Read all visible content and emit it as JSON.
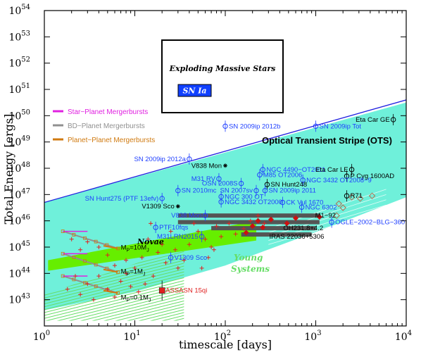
{
  "chart_data": {
    "type": "scatter",
    "xlabel": "timescale [days]",
    "ylabel": "Total Energy [ergs]",
    "xscale": "log",
    "yscale": "log",
    "xlim": [
      1,
      10000
    ],
    "ylim": [
      1e+42,
      1e+54
    ],
    "x_ticks": [
      {
        "v": 1,
        "mant": "10",
        "exp": "0"
      },
      {
        "v": 10,
        "mant": "10",
        "exp": "1"
      },
      {
        "v": 100,
        "mant": "10",
        "exp": "2"
      },
      {
        "v": 1000,
        "mant": "10",
        "exp": "3"
      },
      {
        "v": 10000,
        "mant": "10",
        "exp": "4"
      }
    ],
    "y_ticks": [
      {
        "v": 43,
        "mant": "10",
        "exp": "43"
      },
      {
        "v": 44,
        "mant": "10",
        "exp": "44"
      },
      {
        "v": 45,
        "mant": "10",
        "exp": "45"
      },
      {
        "v": 46,
        "mant": "10",
        "exp": "46"
      },
      {
        "v": 47,
        "mant": "10",
        "exp": "47"
      },
      {
        "v": 48,
        "mant": "10",
        "exp": "48"
      },
      {
        "v": 49,
        "mant": "10",
        "exp": "49"
      },
      {
        "v": 50,
        "mant": "10",
        "exp": "50"
      },
      {
        "v": 51,
        "mant": "10",
        "exp": "51"
      },
      {
        "v": 52,
        "mant": "10",
        "exp": "52"
      },
      {
        "v": 53,
        "mant": "10",
        "exp": "53"
      },
      {
        "v": 54,
        "mant": "10",
        "exp": "54"
      }
    ],
    "region_labels": {
      "exploding": "Exploding Massive Stars",
      "sn1a": "SN Ia",
      "ots": "Optical Transient Stripe (OTS)",
      "novae": "Novae",
      "young": [
        "Young",
        "Systems"
      ]
    },
    "legend": [
      {
        "label": "Star−Planet Mergerbursts",
        "color": "#e020e0"
      },
      {
        "label": "BD−Planet Mergerbursts",
        "color": "#909090"
      },
      {
        "label": "Planet−Planet Mergerbursts",
        "color": "#d07a10"
      }
    ],
    "colors": {
      "ots_fill": "#6ff0da",
      "sn_line": "#2020e0",
      "novae": "#66ee00",
      "young": "#66dd66",
      "known_event": "#2040ff",
      "red_marker": "#e02020",
      "diamond": "#b07050"
    },
    "sources": [
      {
        "name": "SN 2009ip 2012b",
        "x": 100,
        "y": 49.6,
        "color": "#2040ff",
        "m": "oc",
        "lx": 100,
        "ly": 49.6,
        "anchor": "start"
      },
      {
        "name": "SN 2009ip Tot",
        "x": 1000,
        "y": 49.6,
        "color": "#2040ff",
        "m": "oc",
        "lx": 1000,
        "ly": 49.6,
        "anchor": "start"
      },
      {
        "name": "Eta Car GE",
        "x": 7200,
        "y": 49.85,
        "color": "#000000",
        "m": "oc",
        "lx": 7200,
        "ly": 49.85,
        "anchor": "end"
      },
      {
        "name": "SN 2009ip 2012a",
        "x": 40,
        "y": 48.35,
        "color": "#2040ff",
        "m": "oc",
        "lx": 40,
        "ly": 48.35,
        "anchor": "end"
      },
      {
        "name": "V838 Mon",
        "x": 100,
        "y": 48.1,
        "color": "#000000",
        "m": "star",
        "lx": 100,
        "ly": 48.1,
        "anchor": "end"
      },
      {
        "name": "NGC 4490−OT2011",
        "x": 260,
        "y": 47.95,
        "color": "#2040ff",
        "m": "oc",
        "lx": 260,
        "ly": 47.95,
        "anchor": "start"
      },
      {
        "name": "M85 OT2006",
        "x": 240,
        "y": 47.75,
        "color": "#2040ff",
        "m": "oc",
        "lx": 240,
        "ly": 47.75,
        "anchor": "start"
      },
      {
        "name": "Eta Car LE",
        "x": 2500,
        "y": 47.95,
        "color": "#000000",
        "m": "oc",
        "lx": 2500,
        "ly": 47.95,
        "anchor": "end"
      },
      {
        "name": "P Cyg 1600AD",
        "x": 2200,
        "y": 47.7,
        "color": "#000000",
        "m": "oc",
        "lx": 2200,
        "ly": 47.7,
        "anchor": "start"
      },
      {
        "name": "M31 RV",
        "x": 85,
        "y": 47.6,
        "color": "#2040ff",
        "m": "oc",
        "lx": 85,
        "ly": 47.6,
        "anchor": "end"
      },
      {
        "name": "OSN 2008S",
        "x": 150,
        "y": 47.42,
        "color": "#2040ff",
        "m": "oc",
        "lx": 150,
        "ly": 47.42,
        "anchor": "end"
      },
      {
        "name": "NGC 3432 OT2008−9",
        "x": 720,
        "y": 47.55,
        "color": "#2040ff",
        "m": "oc",
        "lx": 720,
        "ly": 47.55,
        "anchor": "start"
      },
      {
        "name": "SN Hunt248",
        "x": 290,
        "y": 47.38,
        "color": "#000000",
        "m": "oc",
        "lx": 290,
        "ly": 47.38,
        "anchor": "start"
      },
      {
        "name": "SN 2010mc",
        "x": 30,
        "y": 47.15,
        "color": "#2040ff",
        "m": "oc",
        "lx": 30,
        "ly": 47.15,
        "anchor": "start"
      },
      {
        "name": "SN 2007sv",
        "x": 220,
        "y": 47.15,
        "color": "#2040ff",
        "m": "oc",
        "lx": 220,
        "ly": 47.15,
        "anchor": "end"
      },
      {
        "name": "SN 2009ip 2011",
        "x": 275,
        "y": 47.15,
        "color": "#2040ff",
        "m": "oc",
        "lx": 275,
        "ly": 47.15,
        "anchor": "start"
      },
      {
        "name": "R71",
        "x": 2200,
        "y": 46.95,
        "color": "#000000",
        "m": "oc",
        "lx": 2200,
        "ly": 46.95,
        "anchor": "start"
      },
      {
        "name": "SN Hunt275 (PTF 13efv)",
        "x": 20,
        "y": 46.85,
        "color": "#2040ff",
        "m": "oc",
        "lx": 20,
        "ly": 46.85,
        "anchor": "end"
      },
      {
        "name": "NGC 300 OT",
        "x": 90,
        "y": 46.92,
        "color": "#2040ff",
        "m": "oc",
        "lx": 90,
        "ly": 46.92,
        "anchor": "start"
      },
      {
        "name": "NGC 3432 OT2000",
        "x": 90,
        "y": 46.72,
        "color": "#2040ff",
        "m": "oc",
        "lx": 90,
        "ly": 46.72,
        "anchor": "start"
      },
      {
        "name": "CK Vul 1670",
        "x": 430,
        "y": 46.7,
        "color": "#2040ff",
        "m": "oc",
        "lx": 430,
        "ly": 46.7,
        "anchor": "start"
      },
      {
        "name": "V1309 Sco",
        "x": 30,
        "y": 46.55,
        "color": "#000000",
        "m": "star",
        "lx": 30,
        "ly": 46.55,
        "anchor": "end"
      },
      {
        "name": "NGC 6302",
        "x": 700,
        "y": 46.52,
        "color": "#2040ff",
        "m": "oc",
        "lx": 700,
        "ly": 46.52,
        "anchor": "start"
      },
      {
        "name": "V838 Mon",
        "x": 60,
        "y": 46.2,
        "color": "#2040ff",
        "m": "oc",
        "lx": 60,
        "ly": 46.2,
        "anchor": "end"
      },
      {
        "name": "M1−92",
        "x": 900,
        "y": 46.2,
        "color": "#000000",
        "m": "none",
        "lx": 900,
        "ly": 46.2,
        "anchor": "start"
      },
      {
        "name": "OGLE−2002−BLG−360",
        "x": 1500,
        "y": 45.95,
        "color": "#2040ff",
        "m": "oc",
        "lx": 1500,
        "ly": 45.95,
        "anchor": "start"
      },
      {
        "name": "PTF10fqs",
        "x": 17,
        "y": 45.75,
        "color": "#2040ff",
        "m": "oc",
        "lx": 17,
        "ly": 45.75,
        "anchor": "start"
      },
      {
        "name": "OH231.8+4.2",
        "x": 400,
        "y": 45.72,
        "color": "#000000",
        "m": "none",
        "lx": 400,
        "ly": 45.72,
        "anchor": "start"
      },
      {
        "name": "M31LRN2015",
        "x": 55,
        "y": 45.4,
        "color": "#2040ff",
        "m": "oc",
        "lx": 55,
        "ly": 45.4,
        "anchor": "end"
      },
      {
        "name": "IRAS 22036+5306",
        "x": 280,
        "y": 45.4,
        "color": "#000000",
        "m": "none",
        "lx": 280,
        "ly": 45.4,
        "anchor": "start"
      },
      {
        "name": "V1309 Sco",
        "x": 25,
        "y": 44.6,
        "color": "#2040ff",
        "m": "oc",
        "lx": 25,
        "ly": 44.6,
        "anchor": "start"
      },
      {
        "name": "ASSASN 15qi",
        "x": 20,
        "y": 43.35,
        "color": "#e02020",
        "m": "sq",
        "lx": 20,
        "ly": 43.35,
        "anchor": "start"
      }
    ],
    "mass_labels": [
      {
        "text": "M",
        "sub": "P",
        "eq": "=10M",
        "sub2": "J",
        "x": 7.0,
        "y": 44.9
      },
      {
        "text": "M",
        "sub": "P",
        "eq": "=1M",
        "sub2": "J",
        "x": 7.0,
        "y": 44.0
      },
      {
        "text": "M",
        "sub": "P",
        "eq": "=0.1M",
        "sub2": "J",
        "x": 7.0,
        "y": 43.0
      }
    ]
  }
}
